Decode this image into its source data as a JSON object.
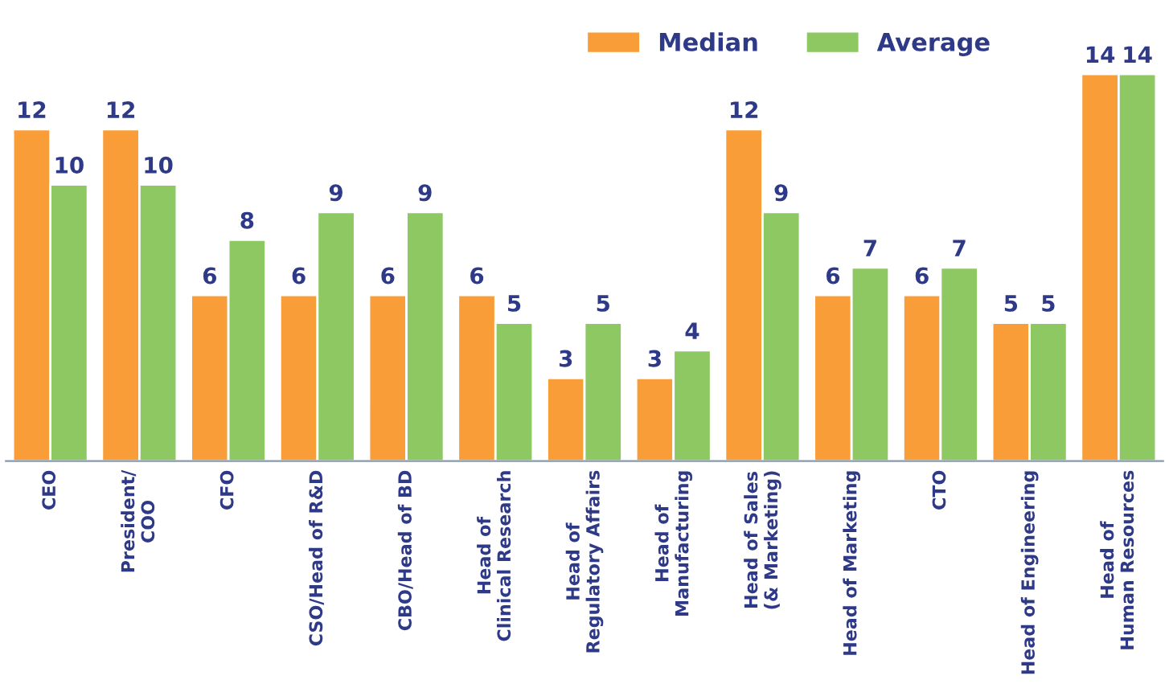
{
  "chart_data": {
    "type": "bar",
    "categories": [
      "CEO",
      "President/\nCOO",
      "CFO",
      "CSO/Head of R&D",
      "CBO/Head of BD",
      "Head of\nClinical Research",
      "Head of\nRegulatory Affairs",
      "Head of\nManufacturing",
      "Head of Sales\n(& Marketing)",
      "Head of Marketing",
      "CTO",
      "Head of Engineering",
      "Head of\nHuman Resources"
    ],
    "series": [
      {
        "name": "Median",
        "color": "#f89d37",
        "values": [
          12,
          12,
          6,
          6,
          6,
          6,
          3,
          3,
          12,
          6,
          6,
          5,
          14
        ]
      },
      {
        "name": "Average",
        "color": "#8dc863",
        "values": [
          10,
          10,
          8,
          9,
          9,
          5,
          5,
          4,
          9,
          7,
          7,
          5,
          14
        ]
      }
    ],
    "data_labels": true,
    "legend": "top right",
    "grid": false
  }
}
